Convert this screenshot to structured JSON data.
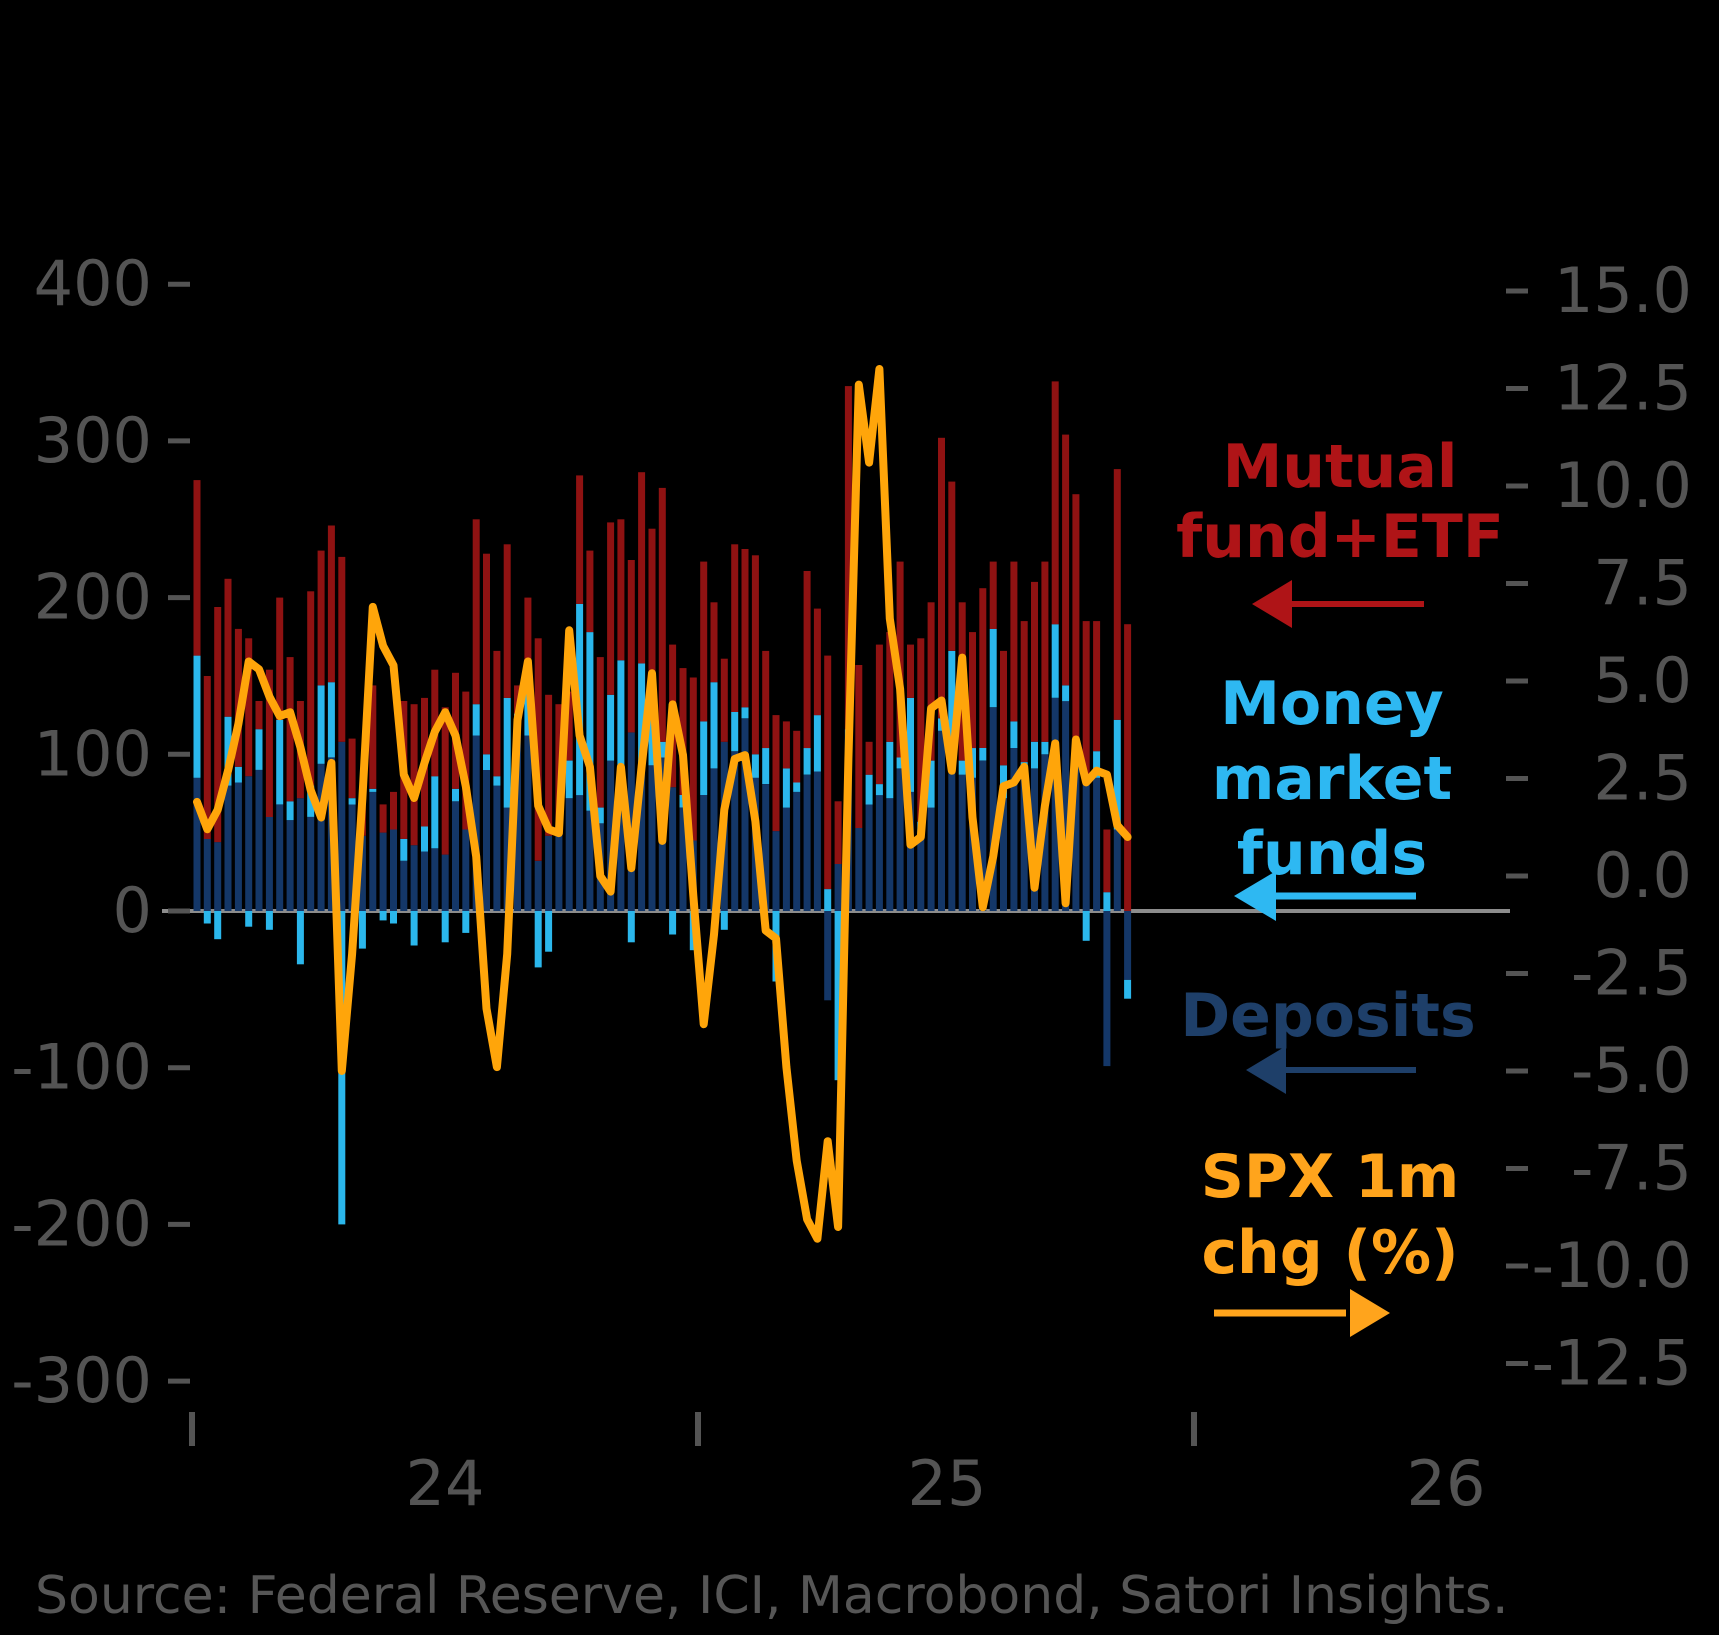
{
  "background_color": "#000000",
  "source_note": "Source: Federal Reserve, ICI, Macrobond, Satori Insights.",
  "source_color": "#565656",
  "axis_label_color": "#545454",
  "zero_line_color": "#8C8C8C",
  "legend": {
    "mutual": {
      "line1": "Mutual",
      "line2": "fund+ETF",
      "color": "#AF1417",
      "arrow": "left"
    },
    "money": {
      "line1": "Money",
      "line2": "market",
      "line3": "funds",
      "color": "#2EB8F2",
      "arrow": "left"
    },
    "deposits": {
      "line1": "Deposits",
      "color": "#1E3F69",
      "arrow": "left"
    },
    "spx": {
      "line1": "SPX 1m",
      "line2": "chg (%)",
      "color": "#FFA41C",
      "arrow": "right"
    }
  },
  "chart_data": {
    "type": "bar",
    "subtype": "stacked-bars-with-line",
    "frequency": "weekly",
    "title": "",
    "xlabel": "",
    "ylabel_left": "",
    "ylabel_right": "",
    "x_year_labels": [
      "24",
      "25",
      "26"
    ],
    "left_axis_ticks": [
      "400",
      "300",
      "200",
      "100",
      "0",
      "-100",
      "-200",
      "-300"
    ],
    "left_axis_tick_values": [
      400,
      300,
      200,
      100,
      0,
      -100,
      -200,
      -300
    ],
    "right_axis_ticks": [
      "15.0",
      "12.5",
      "10.0",
      "7.5",
      "5.0",
      "2.5",
      "0.0",
      "-2.5",
      "-5.0",
      "-7.5",
      "-10.0",
      "-12.5"
    ],
    "right_axis_tick_values": [
      15.0,
      12.5,
      10.0,
      7.5,
      5.0,
      2.5,
      0.0,
      -2.5,
      -5.0,
      -7.5,
      -10.0,
      -12.5
    ],
    "ylim_left": [
      -320,
      430
    ],
    "ylim_right": [
      -13.5,
      15.8
    ],
    "grid": false,
    "legend_position": "right",
    "series": [
      {
        "name": "Deposits",
        "type": "bar",
        "stacked": true,
        "color": "#143768",
        "axis": "left",
        "values": [
          85,
          46,
          44,
          80,
          82,
          86,
          90,
          60,
          68,
          58,
          72,
          60,
          94,
          98,
          108,
          68,
          48,
          76,
          50,
          52,
          32,
          42,
          38,
          40,
          36,
          70,
          52,
          112,
          90,
          80,
          66,
          120,
          112,
          32,
          48,
          50,
          72,
          74,
          64,
          56,
          96,
          90,
          114,
          92,
          93,
          98,
          79,
          66,
          45,
          74,
          91,
          108,
          102,
          123,
          85,
          81,
          51,
          66,
          76,
          87,
          89,
          -57,
          30,
          100,
          53,
          68,
          74,
          72,
          91,
          76,
          49,
          66,
          115,
          102,
          87,
          85,
          96,
          130,
          72,
          104,
          85,
          91,
          100,
          136,
          134,
          98,
          85,
          85,
          -99,
          52,
          -44
        ]
      },
      {
        "name": "Money market funds",
        "type": "bar",
        "stacked": true,
        "color": "#2BB7EC",
        "axis": "left",
        "values": [
          78,
          -8,
          -18,
          44,
          10,
          -10,
          26,
          -12,
          54,
          12,
          -34,
          20,
          50,
          48,
          -200,
          4,
          -24,
          2,
          -6,
          -8,
          14,
          -22,
          16,
          46,
          -20,
          8,
          -14,
          20,
          10,
          6,
          70,
          6,
          30,
          -36,
          -26,
          4,
          24,
          122,
          114,
          10,
          42,
          70,
          -20,
          66,
          58,
          10,
          -15,
          8,
          -25,
          47,
          55,
          -12,
          25,
          7,
          15,
          23,
          -45,
          25,
          6,
          17,
          36,
          14,
          -108,
          16,
          0,
          19,
          7,
          36,
          7,
          60,
          8,
          30,
          8,
          64,
          9,
          19,
          8,
          50,
          21,
          17,
          10,
          17,
          8,
          47,
          10,
          10,
          -19,
          17,
          12,
          70,
          -12
        ]
      },
      {
        "name": "Mutual fund+ETF",
        "type": "bar",
        "stacked": true,
        "color": "#8F1212",
        "axis": "left",
        "values": [
          112,
          104,
          150,
          88,
          88,
          88,
          18,
          94,
          78,
          92,
          62,
          124,
          86,
          100,
          118,
          38,
          22,
          66,
          18,
          24,
          88,
          90,
          82,
          68,
          94,
          74,
          88,
          118,
          128,
          80,
          98,
          18,
          58,
          142,
          90,
          78,
          44,
          82,
          52,
          96,
          110,
          90,
          110,
          122,
          93,
          162,
          91,
          81,
          104,
          102,
          51,
          53,
          107,
          101,
          127,
          62,
          74,
          30,
          33,
          113,
          68,
          149,
          40,
          219,
          104,
          21,
          89,
          70,
          125,
          34,
          117,
          101,
          179,
          108,
          101,
          74,
          102,
          43,
          73,
          102,
          90,
          102,
          115,
          155,
          160,
          158,
          100,
          83,
          40,
          160,
          183
        ]
      },
      {
        "name": "SPX 1m chg (%)",
        "type": "line",
        "color": "#FFA50A",
        "axis": "right",
        "values": [
          1.9,
          1.2,
          1.7,
          2.7,
          3.9,
          5.5,
          5.3,
          4.6,
          4.1,
          4.2,
          3.3,
          2.2,
          1.5,
          2.9,
          -5.0,
          -2.0,
          2.0,
          6.9,
          5.9,
          5.4,
          2.6,
          2.0,
          2.9,
          3.7,
          4.2,
          3.6,
          2.3,
          0.5,
          -3.4,
          -4.9,
          -2.0,
          4.0,
          5.5,
          1.8,
          1.2,
          1.1,
          6.3,
          3.6,
          2.8,
          0.0,
          -0.4,
          2.8,
          0.2,
          2.8,
          5.2,
          0.9,
          4.4,
          3.1,
          -0.5,
          -3.8,
          -1.5,
          1.7,
          3.0,
          3.1,
          1.4,
          -1.4,
          -1.6,
          -4.9,
          -7.3,
          -8.8,
          -9.3,
          -6.8,
          -9.0,
          3.0,
          12.6,
          10.6,
          13.0,
          6.6,
          4.8,
          0.8,
          1.0,
          4.3,
          4.5,
          2.7,
          5.6,
          1.5,
          -0.8,
          0.5,
          2.3,
          2.4,
          2.8,
          -0.3,
          1.8,
          3.4,
          -0.7,
          3.5,
          2.4,
          2.7,
          2.6,
          1.3,
          1.0
        ]
      }
    ]
  }
}
